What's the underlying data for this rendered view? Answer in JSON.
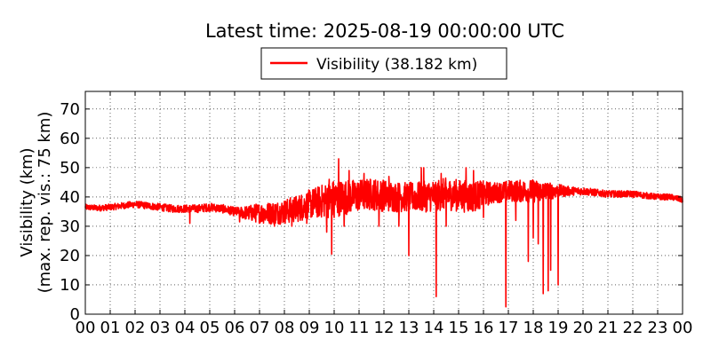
{
  "chart_data": {
    "type": "line",
    "title": "Latest time: 2025-08-19 00:00:00 UTC",
    "xlabel": "",
    "ylabel": "Visibility (km)",
    "ylabel2": "(max. rep. vis.: 75 km)",
    "legend": {
      "position": "top-center",
      "entries": [
        "Visibility (38.182 km)"
      ]
    },
    "grid": true,
    "xlim": [
      0,
      24
    ],
    "ylim": [
      0,
      76
    ],
    "x_ticks": [
      "00",
      "01",
      "02",
      "03",
      "04",
      "05",
      "06",
      "07",
      "08",
      "09",
      "10",
      "11",
      "12",
      "13",
      "14",
      "15",
      "16",
      "17",
      "18",
      "19",
      "20",
      "21",
      "22",
      "23",
      "00"
    ],
    "y_ticks": [
      0,
      10,
      20,
      30,
      40,
      50,
      60,
      70
    ],
    "series": [
      {
        "name": "Visibility (38.182 km)",
        "color": "#ff0000",
        "baseline": [
          [
            0.0,
            36.5
          ],
          [
            0.5,
            36.2
          ],
          [
            1.0,
            36.5
          ],
          [
            1.5,
            37.0
          ],
          [
            2.0,
            37.5
          ],
          [
            2.5,
            37.0
          ],
          [
            3.0,
            36.5
          ],
          [
            3.5,
            36.0
          ],
          [
            4.0,
            36.0
          ],
          [
            4.5,
            36.0
          ],
          [
            5.0,
            36.5
          ],
          [
            5.5,
            36.0
          ],
          [
            6.0,
            35.0
          ],
          [
            6.5,
            34.5
          ],
          [
            7.0,
            34.5
          ],
          [
            7.5,
            34.5
          ],
          [
            8.0,
            35.0
          ],
          [
            8.5,
            36.0
          ],
          [
            9.0,
            37.5
          ],
          [
            9.5,
            38.5
          ],
          [
            10.0,
            39.5
          ],
          [
            10.5,
            40.0
          ],
          [
            11.0,
            40.5
          ],
          [
            11.5,
            41.0
          ],
          [
            12.0,
            40.5
          ],
          [
            12.5,
            40.0
          ],
          [
            13.0,
            40.0
          ],
          [
            13.5,
            40.0
          ],
          [
            14.0,
            40.5
          ],
          [
            14.5,
            41.0
          ],
          [
            15.0,
            40.5
          ],
          [
            15.5,
            40.0
          ],
          [
            16.0,
            41.0
          ],
          [
            16.5,
            41.5
          ],
          [
            17.0,
            42.0
          ],
          [
            17.5,
            42.0
          ],
          [
            18.0,
            42.0
          ],
          [
            18.5,
            42.0
          ],
          [
            19.0,
            42.0
          ],
          [
            19.5,
            42.0
          ],
          [
            20.0,
            42.0
          ],
          [
            20.5,
            41.5
          ],
          [
            21.0,
            41.0
          ],
          [
            21.5,
            41.0
          ],
          [
            22.0,
            41.0
          ],
          [
            22.5,
            40.5
          ],
          [
            23.0,
            40.0
          ],
          [
            23.5,
            40.0
          ],
          [
            24.0,
            39.0
          ]
        ],
        "noise": [
          [
            0.0,
            1.0
          ],
          [
            6.0,
            1.5
          ],
          [
            7.0,
            3.5
          ],
          [
            9.0,
            5.0
          ],
          [
            10.0,
            6.5
          ],
          [
            11.0,
            5.5
          ],
          [
            12.0,
            5.5
          ],
          [
            13.0,
            5.0
          ],
          [
            14.0,
            5.5
          ],
          [
            15.5,
            5.5
          ],
          [
            16.5,
            3.5
          ],
          [
            18.0,
            4.0
          ],
          [
            19.5,
            1.5
          ],
          [
            20.5,
            1.2
          ],
          [
            24.0,
            1.0
          ]
        ],
        "peaks": [
          [
            10.18,
            53
          ],
          [
            10.6,
            49
          ],
          [
            11.2,
            48
          ],
          [
            13.5,
            50
          ],
          [
            13.6,
            50
          ],
          [
            14.3,
            48
          ],
          [
            15.3,
            50
          ],
          [
            15.6,
            49
          ],
          [
            12.2,
            47
          ],
          [
            9.8,
            46
          ]
        ],
        "dips": [
          [
            4.2,
            31
          ],
          [
            6.2,
            31.5
          ],
          [
            7.6,
            30
          ],
          [
            8.3,
            30
          ],
          [
            9.7,
            28
          ],
          [
            9.9,
            20.5
          ],
          [
            10.4,
            30
          ],
          [
            11.8,
            30
          ],
          [
            12.6,
            30
          ],
          [
            13.0,
            20
          ],
          [
            14.1,
            6
          ],
          [
            14.5,
            30
          ],
          [
            15.6,
            26
          ],
          [
            16.0,
            33
          ],
          [
            16.9,
            2.5
          ],
          [
            17.3,
            32
          ],
          [
            17.8,
            18
          ],
          [
            18.0,
            26
          ],
          [
            18.2,
            24
          ],
          [
            18.4,
            7
          ],
          [
            18.6,
            8
          ],
          [
            18.7,
            15
          ],
          [
            19.0,
            10
          ],
          [
            8.9,
            31
          ],
          [
            10.0,
            33
          ]
        ],
        "final": 38.182
      }
    ]
  }
}
